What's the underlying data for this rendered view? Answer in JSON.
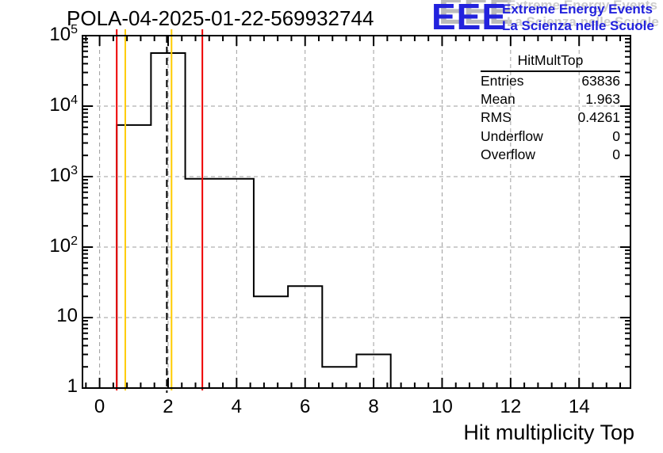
{
  "header": {
    "title": "POLA-04-2025-01-22-569932744",
    "logo": {
      "acronym": "EEE",
      "line1": "Extreme Energy Events",
      "line2": "La Scienza nelle Scuole",
      "text_color": "#2222dd",
      "shadow_color": "#bbbbbb"
    }
  },
  "chart_data": {
    "type": "bar",
    "subtype": "step-histogram",
    "title": "POLA-04-2025-01-22-569932744",
    "xlabel": "Hit multiplicity Top",
    "ylabel": "",
    "x_range": [
      -0.5,
      15.5
    ],
    "y_scale": "log",
    "y_range": [
      1,
      100000
    ],
    "x_major_ticks": [
      0,
      2,
      4,
      6,
      8,
      10,
      12,
      14
    ],
    "x_minor_step": 0.4,
    "y_major_ticks": [
      1,
      10,
      100,
      1000,
      10000,
      100000
    ],
    "grid": {
      "show": true,
      "color": "#9e9e9e",
      "dash": "5,4"
    },
    "frame_color": "#000000",
    "histogram": {
      "line_color": "#000000",
      "bin_edges": [
        0.5,
        1.5,
        2.5,
        3.5,
        4.5,
        5.5,
        6.5,
        7.5,
        8.5
      ],
      "bin_centers": [
        1,
        2,
        3,
        4,
        5,
        6,
        7,
        8
      ],
      "bin_contents": [
        5400,
        56550,
        930,
        930,
        20,
        28,
        2,
        3
      ],
      "values_estimated_from_log_scale": true,
      "bins_outside_range_empty": true
    },
    "marker_lines": [
      {
        "x": 0.5,
        "color": "#ee0000",
        "style": "solid"
      },
      {
        "x": 0.75,
        "color": "#ffcc00",
        "style": "solid"
      },
      {
        "x": 1.963,
        "color": "#000000",
        "style": "dashed"
      },
      {
        "x": 2.1,
        "color": "#ffcc00",
        "style": "solid"
      },
      {
        "x": 3.0,
        "color": "#ee0000",
        "style": "solid"
      }
    ],
    "stats_box": {
      "title": "HitMultTop",
      "rows": [
        {
          "label": "Entries",
          "value": "63836"
        },
        {
          "label": "Mean",
          "value": "1.963"
        },
        {
          "label": "RMS",
          "value": "0.4261"
        },
        {
          "label": "Underflow",
          "value": "0"
        },
        {
          "label": "Overflow",
          "value": "0"
        }
      ]
    }
  }
}
